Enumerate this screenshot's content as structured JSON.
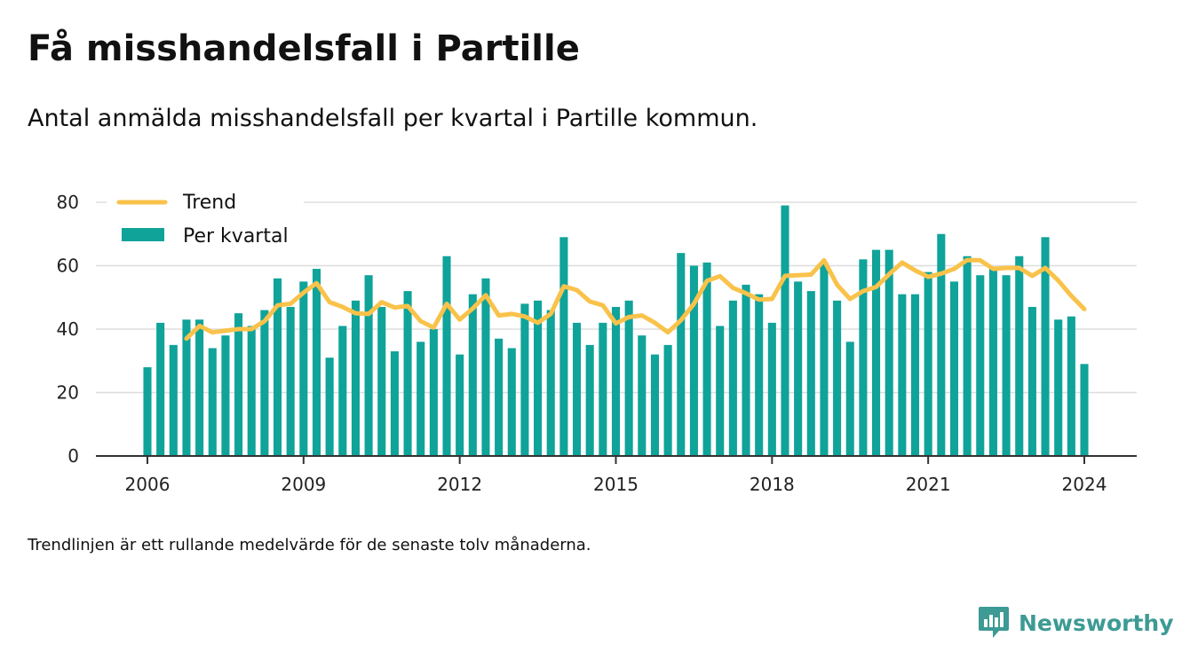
{
  "title": "Få misshandelsfall i Partille",
  "subtitle": "Antal anmälda misshandelsfall per kvartal i Partille kommun.",
  "note": "Trendlinjen är ett rullande medelvärde för de senaste tolv månaderna.",
  "brand": {
    "name": "Newsworthy",
    "icon": "newsworthy-logo-icon",
    "color": "#3d9a94"
  },
  "colors": {
    "bars": "#0fa39a",
    "trend": "#f9c24a",
    "grid": "#dddddd",
    "axis": "#333333"
  },
  "chart_data": {
    "type": "bar",
    "legend_position": "top-left",
    "grid": true,
    "ylim": [
      0,
      80
    ],
    "xlim": [
      2006,
      2024
    ],
    "yticks": [
      0,
      20,
      40,
      60,
      80
    ],
    "xticks": [
      "2006",
      "2009",
      "2012",
      "2015",
      "2018",
      "2021",
      "2024"
    ],
    "x_start": 2006,
    "x_step": 0.25,
    "series": [
      {
        "name": "Per kvartal",
        "type": "bar",
        "values": [
          28,
          42,
          35,
          43,
          43,
          34,
          38,
          45,
          41,
          46,
          56,
          47,
          55,
          59,
          31,
          41,
          49,
          57,
          47,
          33,
          52,
          36,
          40,
          63,
          32,
          51,
          56,
          37,
          34,
          48,
          49,
          46,
          69,
          42,
          35,
          42,
          47,
          49,
          38,
          32,
          35,
          64,
          60,
          61,
          41,
          49,
          54,
          51,
          42,
          79,
          55,
          52,
          61,
          49,
          36,
          62,
          65,
          65,
          51,
          51,
          58,
          70,
          55,
          63,
          57,
          59,
          57,
          63,
          47,
          69,
          43,
          44,
          29
        ]
      },
      {
        "name": "Trend",
        "type": "line",
        "start_index": 3,
        "values": [
          37,
          41,
          39,
          39.5,
          40,
          40,
          42.5,
          47.5,
          48,
          51.5,
          54.5,
          48.5,
          47,
          45,
          44.8,
          48.5,
          46.8,
          47.3,
          42.5,
          40.5,
          48,
          43,
          46.5,
          50.7,
          44.3,
          44.8,
          44,
          42,
          44.8,
          53.5,
          52.3,
          48.7,
          47.5,
          41.8,
          43.8,
          44.3,
          42,
          39,
          42.8,
          48,
          55.2,
          56.7,
          53,
          51.3,
          49.3,
          49.5,
          56.8,
          57,
          57.2,
          61.7,
          54,
          49.5,
          52,
          53.3,
          57.3,
          61,
          58.5,
          56.5,
          57.5,
          59,
          61.8,
          61.7,
          59,
          59.3,
          59.3,
          56.8,
          59.3,
          55.3,
          50.5,
          46.3
        ]
      }
    ]
  }
}
